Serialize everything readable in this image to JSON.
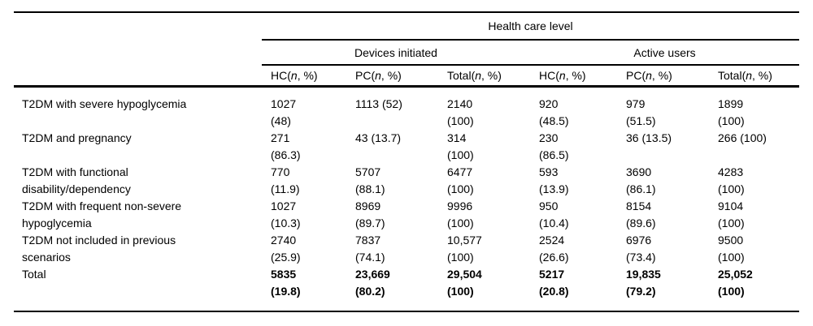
{
  "table": {
    "spanner": "Health care level",
    "groups": [
      {
        "label": "Devices initiated"
      },
      {
        "label": "Active users"
      }
    ],
    "columns": [
      {
        "pre": "HC(",
        "it": "n",
        "post": ", %)"
      },
      {
        "pre": "PC(",
        "it": "n",
        "post": ", %)"
      },
      {
        "pre": "Total(",
        "it": "n",
        "post": ", %)"
      },
      {
        "pre": "HC(",
        "it": "n",
        "post": ", %)"
      },
      {
        "pre": "PC(",
        "it": "n",
        "post": ", %)"
      },
      {
        "pre": "Total(",
        "it": "n",
        "post": ", %)"
      }
    ],
    "rows": [
      {
        "label": [
          "T2DM with severe hypoglycemia",
          ""
        ],
        "bold": false,
        "cells": [
          [
            "1027",
            "(48)"
          ],
          [
            "1113 (52)",
            ""
          ],
          [
            "2140",
            "(100)"
          ],
          [
            "920",
            "(48.5)"
          ],
          [
            "979",
            "(51.5)"
          ],
          [
            "1899",
            "(100)"
          ]
        ]
      },
      {
        "label": [
          "T2DM and pregnancy",
          ""
        ],
        "bold": false,
        "cells": [
          [
            "271",
            "(86.3)"
          ],
          [
            "43 (13.7)",
            ""
          ],
          [
            "314",
            "(100)"
          ],
          [
            "230",
            "(86.5)"
          ],
          [
            "36 (13.5)",
            ""
          ],
          [
            "266 (100)",
            ""
          ]
        ]
      },
      {
        "label": [
          "T2DM with functional",
          "disability/dependency"
        ],
        "bold": false,
        "cells": [
          [
            "770",
            "(11.9)"
          ],
          [
            "5707",
            "(88.1)"
          ],
          [
            "6477",
            "(100)"
          ],
          [
            "593",
            "(13.9)"
          ],
          [
            "3690",
            "(86.1)"
          ],
          [
            "4283",
            "(100)"
          ]
        ]
      },
      {
        "label": [
          "T2DM with frequent non-severe",
          "hypoglycemia"
        ],
        "bold": false,
        "cells": [
          [
            "1027",
            "(10.3)"
          ],
          [
            "8969",
            "(89.7)"
          ],
          [
            "9996",
            "(100)"
          ],
          [
            "950",
            "(10.4)"
          ],
          [
            "8154",
            "(89.6)"
          ],
          [
            "9104",
            "(100)"
          ]
        ]
      },
      {
        "label": [
          "T2DM not included in previous",
          "scenarios"
        ],
        "bold": false,
        "cells": [
          [
            "2740",
            "(25.9)"
          ],
          [
            "7837",
            "(74.1)"
          ],
          [
            "10,577",
            "(100)"
          ],
          [
            "2524",
            "(26.6)"
          ],
          [
            "6976",
            "(73.4)"
          ],
          [
            "9500",
            "(100)"
          ]
        ]
      },
      {
        "label": [
          "Total",
          ""
        ],
        "bold": true,
        "cells": [
          [
            "5835",
            "(19.8)"
          ],
          [
            "23,669",
            "(80.2)"
          ],
          [
            "29,504",
            "(100)"
          ],
          [
            "5217",
            "(20.8)"
          ],
          [
            "19,835",
            "(79.2)"
          ],
          [
            "25,052",
            "(100)"
          ]
        ]
      }
    ]
  }
}
